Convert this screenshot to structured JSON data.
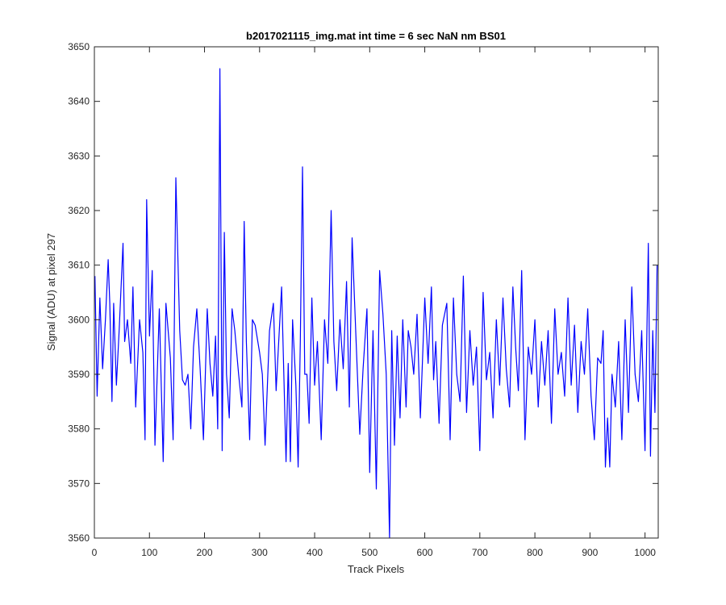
{
  "chart_data": {
    "type": "line",
    "title": "b2017021115_img.mat int time = 6 sec  NaN nm BS01",
    "xlabel": "Track Pixels",
    "ylabel": "Signal (ADU) at pixel 297",
    "xlim": [
      0,
      1024
    ],
    "ylim": [
      3560,
      3650
    ],
    "xticks": [
      0,
      100,
      200,
      300,
      400,
      500,
      600,
      700,
      800,
      900,
      1000
    ],
    "yticks": [
      3560,
      3570,
      3580,
      3590,
      3600,
      3610,
      3620,
      3630,
      3640,
      3650
    ],
    "xtick_labels": [
      "0",
      "100",
      "200",
      "300",
      "400",
      "500",
      "600",
      "700",
      "800",
      "900",
      "1000"
    ],
    "ytick_labels": [
      "3560",
      "3570",
      "3580",
      "3590",
      "3600",
      "3610",
      "3620",
      "3630",
      "3640",
      "3650"
    ],
    "grid": false,
    "legend": "none",
    "series": [
      {
        "color": "#0000ff",
        "x": [
          1,
          5,
          10,
          15,
          20,
          25,
          28,
          32,
          35,
          40,
          45,
          52,
          55,
          60,
          66,
          70,
          75,
          82,
          88,
          92,
          95,
          100,
          105,
          110,
          118,
          125,
          130,
          138,
          143,
          148,
          155,
          160,
          165,
          170,
          175,
          180,
          186,
          192,
          198,
          205,
          210,
          215,
          220,
          224,
          228,
          232,
          236,
          240,
          245,
          250,
          255,
          262,
          268,
          272,
          276,
          282,
          287,
          292,
          300,
          305,
          310,
          318,
          325,
          330,
          340,
          348,
          352,
          356,
          360,
          366,
          370,
          374,
          378,
          382,
          386,
          390,
          395,
          400,
          405,
          412,
          418,
          424,
          430,
          435,
          440,
          446,
          452,
          458,
          463,
          468,
          475,
          482,
          488,
          495,
          500,
          506,
          512,
          518,
          524,
          530,
          536,
          540,
          545,
          550,
          555,
          560,
          566,
          570,
          575,
          580,
          586,
          592,
          600,
          606,
          612,
          616,
          620,
          626,
          632,
          640,
          646,
          652,
          658,
          664,
          670,
          676,
          682,
          688,
          694,
          700,
          706,
          712,
          718,
          724,
          730,
          736,
          742,
          748,
          754,
          760,
          765,
          770,
          776,
          782,
          788,
          794,
          800,
          806,
          812,
          818,
          824,
          830,
          836,
          842,
          848,
          854,
          860,
          866,
          872,
          878,
          884,
          890,
          896,
          902,
          908,
          914,
          920,
          924,
          928,
          932,
          936,
          940,
          946,
          952,
          958,
          964,
          970,
          976,
          982,
          988,
          994,
          1000,
          1006,
          1010,
          1014,
          1018,
          1022
        ],
        "y": [
          3608,
          3586,
          3604,
          3591,
          3600,
          3611,
          3603,
          3585,
          3603,
          3588,
          3598,
          3614,
          3596,
          3600,
          3592,
          3606,
          3584,
          3600,
          3594,
          3578,
          3622,
          3597,
          3609,
          3577,
          3602,
          3574,
          3603,
          3593,
          3578,
          3626,
          3598,
          3589,
          3588,
          3590,
          3580,
          3595,
          3602,
          3591,
          3578,
          3602,
          3592,
          3586,
          3597,
          3580,
          3646,
          3576,
          3616,
          3590,
          3582,
          3602,
          3598,
          3590,
          3584,
          3618,
          3596,
          3578,
          3600,
          3599,
          3594,
          3590,
          3577,
          3598,
          3603,
          3587,
          3606,
          3574,
          3592,
          3574,
          3600,
          3588,
          3573,
          3596,
          3628,
          3590,
          3590,
          3581,
          3604,
          3588,
          3596,
          3578,
          3600,
          3592,
          3620,
          3596,
          3587,
          3600,
          3591,
          3607,
          3584,
          3615,
          3597,
          3579,
          3591,
          3602,
          3572,
          3598,
          3569,
          3609,
          3601,
          3590,
          3560,
          3598,
          3577,
          3597,
          3582,
          3600,
          3584,
          3598,
          3595,
          3590,
          3601,
          3582,
          3604,
          3592,
          3606,
          3589,
          3596,
          3581,
          3599,
          3603,
          3578,
          3604,
          3590,
          3585,
          3608,
          3583,
          3598,
          3588,
          3595,
          3576,
          3605,
          3589,
          3594,
          3582,
          3600,
          3588,
          3604,
          3591,
          3584,
          3606,
          3595,
          3587,
          3609,
          3578,
          3595,
          3590,
          3600,
          3584,
          3596,
          3588,
          3598,
          3581,
          3602,
          3590,
          3594,
          3586,
          3604,
          3588,
          3599,
          3583,
          3596,
          3590,
          3602,
          3586,
          3578,
          3593,
          3592,
          3598,
          3573,
          3582,
          3573,
          3590,
          3584,
          3596,
          3578,
          3600,
          3583,
          3606,
          3590,
          3585,
          3598,
          3576,
          3614,
          3575,
          3598,
          3583,
          3610
        ]
      }
    ]
  }
}
